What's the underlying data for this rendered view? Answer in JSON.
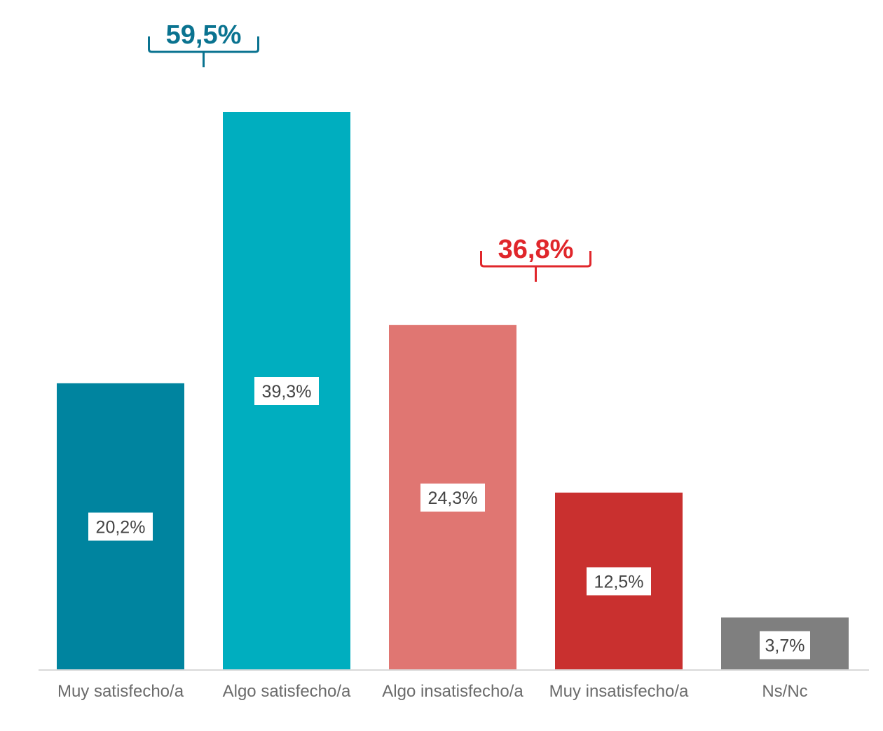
{
  "chart_data": {
    "type": "bar",
    "categories": [
      "Muy satisfecho/a",
      "Algo satisfecho/a",
      "Algo insatisfecho/a",
      "Muy insatisfecho/a",
      "Ns/Nc"
    ],
    "values": [
      20.2,
      39.3,
      24.3,
      12.5,
      3.7
    ],
    "value_labels": [
      "20,2%",
      "39,3%",
      "24,3%",
      "12,5%",
      "3,7%"
    ],
    "colors": [
      "#00849f",
      "#00aebf",
      "#e07672",
      "#c9302f",
      "#7f7f7f"
    ],
    "title": "",
    "xlabel": "",
    "ylabel": "",
    "ylim": [
      0,
      40
    ],
    "grid": false,
    "legend": "none",
    "annotations": [
      {
        "text": "59,5%",
        "spans": [
          0,
          1
        ],
        "color": "#0a7390"
      },
      {
        "text": "36,8%",
        "spans": [
          2,
          3
        ],
        "color": "#e0262b"
      }
    ]
  }
}
